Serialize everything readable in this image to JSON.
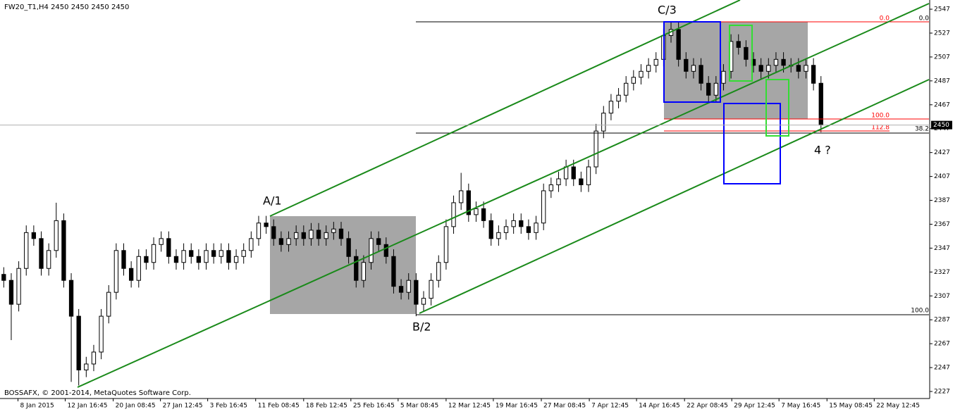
{
  "chart_data": {
    "type": "candlestick",
    "title": "FW20_T1,H4  2450 2450 2450 2450",
    "footer": "BOSSAFX, © 2001-2014, MetaQuotes Software Corp.",
    "current_price": 2450,
    "colors": {
      "bull_body": "#ffffff",
      "bear_body": "#000000",
      "wick": "#000000",
      "channel": "#1a8a1a",
      "box": "#a6a6a6",
      "blue": "#0000ff",
      "green": "#33dd33",
      "fibo": "#ff0000"
    },
    "annotations": {
      "a1": "A/1",
      "b2": "B/2",
      "c3": "C/3",
      "w4": "4 ?",
      "fib_top": "0.0",
      "fib_mid": "38.2",
      "fib_bottom": "100.0",
      "red_top": "0.0",
      "red_mid": "100.0",
      "red_low": "112.8"
    },
    "open": [
      2325,
      2320,
      2300,
      2330,
      2360,
      2355,
      2330,
      2345,
      2370,
      2320,
      2290,
      2245,
      2250,
      2260,
      2290,
      2310,
      2345,
      2330,
      2320,
      2340,
      2335,
      2350,
      2355,
      2340,
      2335,
      2345,
      2340,
      2335,
      2345,
      2340,
      2345,
      2335,
      2340,
      2345,
      2355,
      2368,
      2365,
      2355,
      2350,
      2355,
      2360,
      2355,
      2362,
      2355,
      2360,
      2363,
      2355,
      2340,
      2320,
      2335,
      2355,
      2350,
      2340,
      2315,
      2310,
      2320,
      2300,
      2305,
      2320,
      2335,
      2365,
      2385,
      2395,
      2375,
      2380,
      2370,
      2355,
      2360,
      2365,
      2370,
      2365,
      2360,
      2368,
      2395,
      2400,
      2405,
      2415,
      2405,
      2400,
      2415,
      2445,
      2460,
      2470,
      2475,
      2485,
      2490,
      2495,
      2500,
      2505,
      2525,
      2530,
      2505,
      2495,
      2500,
      2485,
      2475,
      2485,
      2495,
      2520,
      2515,
      2505,
      2500,
      2495,
      2500,
      2505,
      2500,
      2500,
      2495,
      2500,
      2485
    ],
    "high": [
      2331,
      2326,
      2336,
      2366,
      2366,
      2361,
      2351,
      2385,
      2376,
      2326,
      2296,
      2256,
      2266,
      2296,
      2316,
      2351,
      2351,
      2336,
      2346,
      2346,
      2356,
      2361,
      2361,
      2346,
      2351,
      2351,
      2346,
      2351,
      2351,
      2351,
      2351,
      2346,
      2351,
      2361,
      2374,
      2374,
      2371,
      2361,
      2361,
      2366,
      2366,
      2368,
      2368,
      2366,
      2369,
      2369,
      2361,
      2346,
      2341,
      2361,
      2361,
      2356,
      2346,
      2321,
      2326,
      2326,
      2311,
      2326,
      2341,
      2371,
      2391,
      2410,
      2401,
      2386,
      2386,
      2376,
      2366,
      2371,
      2376,
      2376,
      2371,
      2374,
      2401,
      2406,
      2411,
      2421,
      2421,
      2411,
      2421,
      2451,
      2466,
      2476,
      2481,
      2491,
      2496,
      2501,
      2506,
      2511,
      2531,
      2537,
      2536,
      2511,
      2506,
      2506,
      2491,
      2491,
      2501,
      2526,
      2526,
      2521,
      2511,
      2506,
      2506,
      2511,
      2511,
      2506,
      2506,
      2506,
      2506,
      2491
    ],
    "low": [
      2314,
      2270,
      2294,
      2324,
      2349,
      2324,
      2324,
      2339,
      2314,
      2235,
      2232,
      2239,
      2244,
      2254,
      2284,
      2304,
      2324,
      2314,
      2314,
      2329,
      2329,
      2344,
      2334,
      2329,
      2329,
      2334,
      2329,
      2329,
      2334,
      2334,
      2329,
      2329,
      2334,
      2339,
      2349,
      2359,
      2349,
      2344,
      2344,
      2349,
      2349,
      2349,
      2349,
      2349,
      2354,
      2349,
      2334,
      2314,
      2314,
      2329,
      2344,
      2334,
      2309,
      2304,
      2304,
      2290,
      2294,
      2299,
      2314,
      2329,
      2359,
      2379,
      2369,
      2369,
      2364,
      2349,
      2349,
      2354,
      2359,
      2359,
      2354,
      2354,
      2362,
      2389,
      2394,
      2399,
      2399,
      2394,
      2394,
      2409,
      2439,
      2454,
      2464,
      2469,
      2479,
      2484,
      2489,
      2494,
      2499,
      2519,
      2499,
      2489,
      2489,
      2479,
      2469,
      2469,
      2479,
      2489,
      2509,
      2499,
      2494,
      2489,
      2489,
      2494,
      2494,
      2494,
      2489,
      2489,
      2479,
      2444
    ],
    "close": [
      2320,
      2300,
      2330,
      2360,
      2355,
      2330,
      2345,
      2370,
      2320,
      2290,
      2245,
      2250,
      2260,
      2290,
      2310,
      2345,
      2330,
      2320,
      2340,
      2335,
      2350,
      2355,
      2340,
      2335,
      2345,
      2340,
      2335,
      2345,
      2340,
      2345,
      2335,
      2340,
      2345,
      2355,
      2368,
      2365,
      2355,
      2350,
      2355,
      2360,
      2355,
      2362,
      2355,
      2360,
      2363,
      2355,
      2340,
      2320,
      2335,
      2355,
      2350,
      2340,
      2315,
      2310,
      2320,
      2300,
      2305,
      2320,
      2335,
      2365,
      2385,
      2395,
      2375,
      2380,
      2370,
      2355,
      2360,
      2365,
      2370,
      2365,
      2360,
      2368,
      2395,
      2400,
      2405,
      2415,
      2405,
      2400,
      2415,
      2445,
      2460,
      2470,
      2475,
      2485,
      2490,
      2495,
      2500,
      2505,
      2525,
      2530,
      2505,
      2495,
      2500,
      2485,
      2475,
      2485,
      2495,
      2520,
      2515,
      2505,
      2500,
      2495,
      2500,
      2505,
      2500,
      2500,
      2495,
      2500,
      2485,
      2450
    ],
    "xlim": [
      -0.5,
      123.5
    ],
    "xticks": [
      {
        "value": 1.9,
        "label": "8 Jan 2015"
      },
      {
        "value": 8.2,
        "label": "12 Jan 16:45"
      },
      {
        "value": 14.6,
        "label": "20 Jan 08:45"
      },
      {
        "value": 20.9,
        "label": "27 Jan 12:45"
      },
      {
        "value": 27.2,
        "label": "3 Feb 16:45"
      },
      {
        "value": 33.6,
        "label": "11 Feb 08:45"
      },
      {
        "value": 40,
        "label": "18 Feb 12:45"
      },
      {
        "value": 46.3,
        "label": "25 Feb 16:45"
      },
      {
        "value": 52.6,
        "label": "5 Mar 08:45"
      },
      {
        "value": 59,
        "label": "12 Mar 12:45"
      },
      {
        "value": 65.3,
        "label": "19 Mar 16:45"
      },
      {
        "value": 71.7,
        "label": "27 Mar 08:45"
      },
      {
        "value": 78.1,
        "label": "7 Apr 12:45"
      },
      {
        "value": 84.4,
        "label": "14 Apr 16:45"
      },
      {
        "value": 90.8,
        "label": "22 Apr 08:45"
      },
      {
        "value": 97.1,
        "label": "29 Apr 12:45"
      },
      {
        "value": 103.4,
        "label": "7 May 16:45"
      },
      {
        "value": 109.8,
        "label": "15 May 08:45"
      },
      {
        "value": 116.1,
        "label": "22 May 12:45"
      }
    ],
    "ylim": [
      2221.1,
      2554.7
    ],
    "yticks": [
      2227,
      2247,
      2267,
      2287,
      2307,
      2327,
      2347,
      2367,
      2387,
      2407,
      2427,
      2447,
      2467,
      2487,
      2507,
      2527,
      2547
    ]
  }
}
